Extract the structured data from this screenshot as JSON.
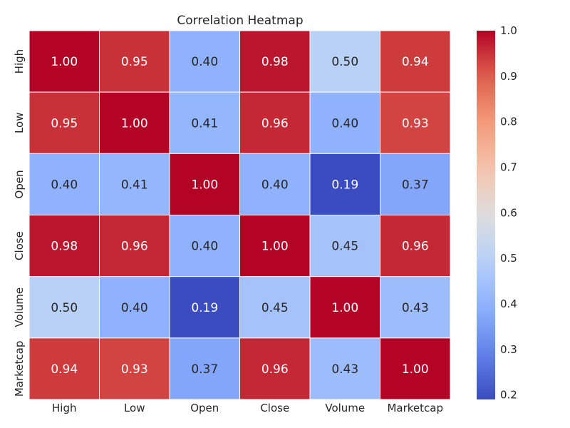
{
  "chart_data": {
    "type": "heatmap",
    "title": "Correlation Heatmap",
    "xlabel": "",
    "ylabel": "",
    "x_categories": [
      "High",
      "Low",
      "Open",
      "Close",
      "Volume",
      "Marketcap"
    ],
    "y_categories": [
      "High",
      "Low",
      "Open",
      "Close",
      "Volume",
      "Marketcap"
    ],
    "values": [
      [
        1.0,
        0.95,
        0.4,
        0.98,
        0.5,
        0.94
      ],
      [
        0.95,
        1.0,
        0.41,
        0.96,
        0.4,
        0.93
      ],
      [
        0.4,
        0.41,
        1.0,
        0.4,
        0.19,
        0.37
      ],
      [
        0.98,
        0.96,
        0.4,
        1.0,
        0.45,
        0.96
      ],
      [
        0.5,
        0.4,
        0.19,
        0.45,
        1.0,
        0.43
      ],
      [
        0.94,
        0.93,
        0.37,
        0.96,
        0.43,
        1.0
      ]
    ],
    "value_format_decimals": 2,
    "colormap": "coolwarm",
    "colorbar": {
      "range": [
        0.19,
        1.0
      ],
      "ticks": [
        0.2,
        0.3,
        0.4,
        0.5,
        0.6,
        0.7,
        0.8,
        0.9,
        1.0
      ],
      "tick_labels": [
        "0.2",
        "0.3",
        "0.4",
        "0.5",
        "0.6",
        "0.7",
        "0.8",
        "0.9",
        "1.0"
      ]
    },
    "annotations_on": true,
    "grid": false,
    "legend": "colorbar-right"
  }
}
